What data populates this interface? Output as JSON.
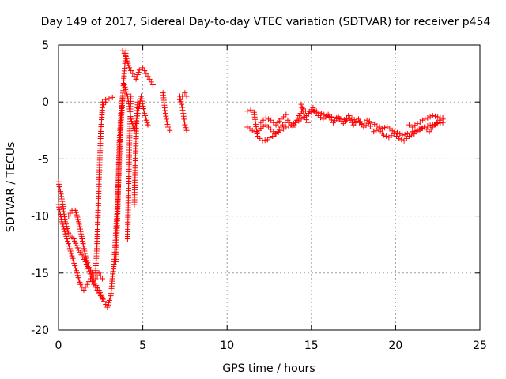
{
  "chart_data": {
    "type": "scatter",
    "title": "Day 149 of 2017, Sidereal Day-to-day VTEC variation (SDTVAR) for receiver p454",
    "xlabel": "GPS time / hours",
    "ylabel": "SDTVAR / TECUs",
    "xlim": [
      0,
      25
    ],
    "ylim": [
      -20,
      5
    ],
    "xticks": [
      0,
      5,
      10,
      15,
      20,
      25
    ],
    "yticks": [
      5,
      0,
      -5,
      -10,
      -15,
      -20
    ],
    "xtick_labels": [
      "0",
      "5",
      "10",
      "15",
      "20",
      "25"
    ],
    "ytick_labels": [
      "5",
      "0",
      "-5",
      "-10",
      "-15",
      "-20"
    ],
    "grid": true,
    "marker": "plus",
    "series": [
      {
        "name": "SDTVAR",
        "color": "#ff0000",
        "segments": [
          {
            "x": [
              0.0,
              0.2,
              0.4,
              0.6,
              0.9,
              1.2,
              1.6,
              2.0,
              2.4,
              2.7,
              2.9,
              3.1,
              3.3,
              3.5,
              3.7,
              3.9,
              4.0
            ],
            "y": [
              -7.0,
              -8.5,
              -10.5,
              -11.5,
              -12.0,
              -13.0,
              -14.0,
              -15.5,
              -16.5,
              -17.5,
              -18.0,
              -17.0,
              -14.0,
              -9.0,
              -2.0,
              2.5,
              4.5
            ]
          },
          {
            "x": [
              0.0,
              0.2,
              0.5,
              0.8,
              1.1,
              1.3,
              1.5,
              1.7,
              1.9,
              2.1,
              2.3,
              2.5,
              2.7
            ],
            "y": [
              -9.0,
              -10.5,
              -12.0,
              -13.5,
              -15.0,
              -16.0,
              -16.5,
              -16.0,
              -15.5,
              -16.0,
              -16.5,
              -17.0,
              -17.5
            ]
          },
          {
            "x": [
              0.6,
              0.8,
              1.0,
              1.2,
              1.4,
              1.6,
              1.8,
              2.0,
              2.2,
              2.4,
              2.6
            ],
            "y": [
              -10.0,
              -9.5,
              -9.5,
              -10.5,
              -12.0,
              -13.5,
              -14.5,
              -15.0,
              -15.5,
              -15.0,
              -15.5
            ]
          },
          {
            "x": [
              2.2,
              2.3,
              2.4,
              2.5,
              2.6,
              2.7,
              2.8
            ],
            "y": [
              -15.0,
              -12.0,
              -7.0,
              -3.0,
              -0.5,
              0.0,
              0.0
            ]
          },
          {
            "x": [
              2.6,
              2.8,
              3.0,
              3.2
            ],
            "y": [
              0.0,
              0.2,
              0.3,
              0.4
            ]
          },
          {
            "x": [
              3.4,
              3.5,
              3.6,
              3.7,
              3.8
            ],
            "y": [
              -14.0,
              -10.0,
              -4.0,
              -1.0,
              0.5
            ]
          },
          {
            "x": [
              3.8,
              4.0,
              4.2,
              4.4,
              4.6,
              4.8,
              5.0,
              5.2,
              5.4,
              5.6
            ],
            "y": [
              4.5,
              4.0,
              3.0,
              2.5,
              2.0,
              2.8,
              3.0,
              2.5,
              2.0,
              1.5
            ]
          },
          {
            "x": [
              3.9,
              4.1,
              4.3,
              4.5,
              4.7,
              4.9,
              5.1,
              5.3
            ],
            "y": [
              1.5,
              0.5,
              -1.5,
              -2.5,
              -1.0,
              0.5,
              -1.0,
              -2.0
            ]
          },
          {
            "x": [
              4.1,
              4.15,
              4.2,
              4.25,
              4.3
            ],
            "y": [
              -12.0,
              -8.0,
              -4.0,
              -1.5,
              0.5
            ]
          },
          {
            "x": [
              4.5,
              4.55,
              4.6,
              4.65,
              4.7
            ],
            "y": [
              -9.0,
              -6.0,
              -3.0,
              -1.0,
              0.0
            ]
          },
          {
            "x": [
              6.2,
              6.3,
              6.4,
              6.5,
              6.6
            ],
            "y": [
              0.8,
              -0.5,
              -1.5,
              -2.2,
              -2.5
            ]
          },
          {
            "x": [
              7.2,
              7.3,
              7.4,
              7.5,
              7.6
            ],
            "y": [
              0.5,
              -0.2,
              -1.0,
              -2.0,
              -2.5
            ]
          },
          {
            "x": [
              7.2,
              7.35,
              7.5,
              7.6
            ],
            "y": [
              0.2,
              0.5,
              0.8,
              0.5
            ]
          },
          {
            "x": [
              11.2,
              11.5,
              11.8,
              12.0,
              12.3,
              12.6,
              12.9,
              13.2,
              13.5,
              13.8,
              14.1,
              14.4,
              14.7,
              15.0,
              15.3,
              15.6,
              15.9,
              16.2,
              16.5,
              16.8,
              17.1,
              17.4,
              17.7,
              18.0,
              18.3,
              18.6,
              18.9,
              19.2,
              19.5,
              19.8,
              20.1,
              20.4,
              20.7,
              21.0,
              21.3,
              21.6,
              21.9,
              22.2,
              22.5,
              22.8
            ],
            "y": [
              -2.2,
              -2.5,
              -2.7,
              -2.3,
              -2.0,
              -2.4,
              -2.8,
              -2.5,
              -2.2,
              -2.0,
              -1.8,
              -1.5,
              -1.2,
              -0.9,
              -0.8,
              -1.0,
              -1.2,
              -1.3,
              -1.4,
              -1.5,
              -1.6,
              -1.4,
              -1.7,
              -1.9,
              -1.6,
              -1.8,
              -2.1,
              -2.3,
              -2.2,
              -2.5,
              -2.7,
              -2.9,
              -2.8,
              -2.6,
              -2.5,
              -2.3,
              -2.1,
              -2.0,
              -1.9,
              -1.8
            ]
          },
          {
            "x": [
              11.2,
              11.4,
              11.6,
              11.8,
              12.1,
              12.4,
              12.7,
              13.0,
              13.3,
              13.6,
              13.9,
              14.2,
              14.5,
              14.8,
              15.1,
              15.4,
              15.7,
              16.0,
              16.3,
              16.6,
              16.9,
              17.2,
              17.5,
              17.8,
              18.1,
              18.4,
              18.7,
              19.0,
              19.3,
              19.6,
              19.9,
              20.2,
              20.5,
              20.8,
              21.1,
              21.4,
              21.7,
              22.0,
              22.3,
              22.6,
              22.8
            ],
            "y": [
              -0.8,
              -0.7,
              -0.9,
              -3.0,
              -3.4,
              -3.3,
              -3.0,
              -2.6,
              -2.0,
              -1.6,
              -2.2,
              -1.4,
              -0.6,
              -1.0,
              -0.5,
              -1.2,
              -1.5,
              -1.1,
              -1.8,
              -1.3,
              -1.9,
              -1.2,
              -2.0,
              -1.5,
              -2.2,
              -1.9,
              -2.6,
              -2.4,
              -2.9,
              -3.1,
              -2.8,
              -3.2,
              -3.4,
              -3.0,
              -2.8,
              -2.4,
              -2.2,
              -2.6,
              -2.0,
              -1.6,
              -1.4
            ]
          },
          {
            "x": [
              12.0,
              12.3,
              12.6,
              12.9,
              13.2,
              13.5
            ],
            "y": [
              -1.8,
              -1.4,
              -1.6,
              -2.0,
              -1.5,
              -1.1
            ]
          },
          {
            "x": [
              14.4,
              14.5,
              14.6,
              14.8
            ],
            "y": [
              -0.2,
              -0.8,
              -1.3,
              -1.8
            ]
          },
          {
            "x": [
              20.8,
              21.0,
              21.3,
              21.6,
              21.9,
              22.2,
              22.5,
              22.8
            ],
            "y": [
              -2.0,
              -2.2,
              -1.9,
              -1.6,
              -1.4,
              -1.2,
              -1.3,
              -1.5
            ]
          }
        ]
      }
    ]
  }
}
